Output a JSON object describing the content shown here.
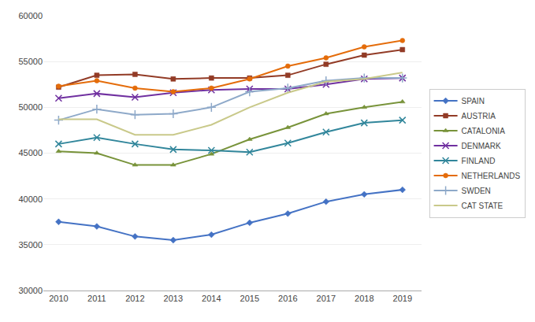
{
  "chart_data": {
    "type": "line",
    "x": [
      2010,
      2011,
      2012,
      2013,
      2014,
      2015,
      2016,
      2017,
      2018,
      2019
    ],
    "series": [
      {
        "name": "SPAIN",
        "color": "#4472C4",
        "marker": "diamond",
        "values": [
          37500,
          37000,
          35900,
          35500,
          36100,
          37400,
          38400,
          39700,
          40500,
          41000
        ]
      },
      {
        "name": "AUSTRIA",
        "color": "#923B26",
        "marker": "square",
        "values": [
          52200,
          53500,
          53600,
          53100,
          53200,
          53200,
          53500,
          54700,
          55700,
          56300
        ]
      },
      {
        "name": "CATALONIA",
        "color": "#78933A",
        "marker": "triangle-up",
        "values": [
          45200,
          45000,
          43700,
          43700,
          44900,
          46500,
          47800,
          49300,
          50000,
          50600
        ]
      },
      {
        "name": "DENMARK",
        "color": "#7030A0",
        "marker": "x",
        "values": [
          51000,
          51500,
          51100,
          51600,
          51900,
          52000,
          52000,
          52500,
          53100,
          53200
        ]
      },
      {
        "name": "FINLAND",
        "color": "#31869B",
        "marker": "x",
        "values": [
          46000,
          46700,
          46000,
          45400,
          45300,
          45100,
          46100,
          47300,
          48300,
          48600
        ]
      },
      {
        "name": "NETHERLANDS",
        "color": "#E46C0A",
        "marker": "circle",
        "values": [
          52300,
          52900,
          52100,
          51700,
          52100,
          53100,
          54500,
          55400,
          56600,
          57300
        ]
      },
      {
        "name": "SWDEN",
        "color": "#8EA9C9",
        "marker": "plus",
        "values": [
          48600,
          49800,
          49200,
          49300,
          50000,
          51700,
          52100,
          52900,
          53200,
          53200
        ]
      },
      {
        "name": "CAT STATE",
        "color": "#C9C98A",
        "values": [
          48700,
          48700,
          47000,
          47000,
          48100,
          50000,
          51600,
          52800,
          53100,
          53800
        ]
      }
    ],
    "xlim": [
      2009.6,
      2019.5
    ],
    "xticks": [
      2010,
      2011,
      2012,
      2013,
      2014,
      2015,
      2016,
      2017,
      2018,
      2019
    ],
    "ylim": [
      30000,
      60000
    ],
    "yticks": [
      30000,
      35000,
      40000,
      45000,
      50000,
      55000,
      60000
    ],
    "grid": true,
    "legend": "right"
  }
}
